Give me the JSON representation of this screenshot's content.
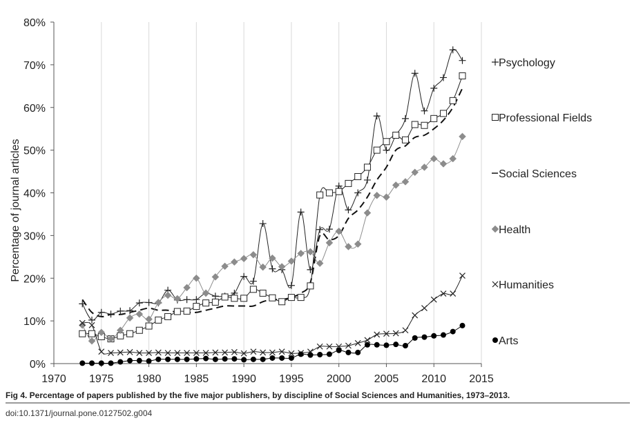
{
  "caption": "Fig 4. Percentage of papers published by the five major publishers, by discipline of Social Sciences and Humanities, 1973–2013.",
  "doi": "doi:10.1371/journal.pone.0127502.g004",
  "chart_data": {
    "type": "line",
    "title": "",
    "xlabel": "",
    "ylabel": "Percentage of journal articles",
    "xlim": [
      1970,
      2015
    ],
    "ylim": [
      0,
      80
    ],
    "x_ticks": [
      "1970",
      "1975",
      "1980",
      "1985",
      "1990",
      "1995",
      "2000",
      "2005",
      "2010",
      "2015"
    ],
    "y_ticks": [
      "0%",
      "10%",
      "20%",
      "30%",
      "40%",
      "50%",
      "60%",
      "70%",
      "80%"
    ],
    "grid": "vertical",
    "legend_position": "right",
    "x": [
      1973,
      1974,
      1975,
      1976,
      1977,
      1978,
      1979,
      1980,
      1981,
      1982,
      1983,
      1984,
      1985,
      1986,
      1987,
      1988,
      1989,
      1990,
      1991,
      1992,
      1993,
      1994,
      1995,
      1996,
      1997,
      1998,
      1999,
      2000,
      2001,
      2002,
      2003,
      2004,
      2005,
      2006,
      2007,
      2008,
      2009,
      2010,
      2011,
      2012,
      2013
    ],
    "series": [
      {
        "name": "Psychology",
        "marker": "plus",
        "color": "#222222",
        "width": 1,
        "dash": "",
        "values": [
          14.0,
          10.2,
          12.0,
          11.6,
          12.3,
          12.4,
          14.2,
          14.3,
          14.2,
          17.2,
          14.9,
          15.0,
          15.0,
          16.5,
          15.8,
          15.8,
          16.5,
          20.4,
          19.3,
          32.8,
          22.2,
          22.0,
          18.3,
          35.5,
          22.0,
          31.4,
          31.5,
          41.6,
          36.0,
          40.0,
          43.0,
          58.0,
          50.0,
          53.5,
          57.4,
          68.0,
          59.2,
          64.5,
          67.0,
          73.5,
          71.0
        ]
      },
      {
        "name": "Professional Fields",
        "marker": "square",
        "color": "#222222",
        "width": 1,
        "dash": "",
        "values": [
          7.0,
          7.0,
          6.3,
          5.8,
          6.5,
          7.0,
          7.8,
          8.8,
          10.2,
          11.0,
          12.2,
          12.3,
          13.4,
          14.2,
          14.4,
          15.6,
          15.3,
          15.3,
          17.4,
          16.5,
          15.4,
          14.5,
          15.5,
          15.5,
          18.2,
          39.5,
          40.0,
          40.3,
          42.2,
          43.8,
          46.0,
          50.0,
          52.0,
          53.5,
          52.4,
          56.0,
          55.8,
          57.4,
          58.6,
          61.6,
          67.4
        ]
      },
      {
        "name": "Social Sciences",
        "marker": "none",
        "color": "#111111",
        "width": 2,
        "dash": "10,6",
        "values": [
          15.0,
          12.0,
          11.0,
          11.5,
          11.5,
          12.0,
          12.5,
          13.0,
          12.5,
          12.5,
          12.0,
          12.0,
          12.0,
          12.5,
          13.0,
          13.5,
          13.5,
          13.5,
          13.5,
          14.5,
          15.0,
          15.0,
          15.5,
          16.5,
          19.0,
          30.0,
          29.0,
          30.0,
          34.0,
          36.0,
          39.0,
          43.0,
          46.0,
          50.0,
          51.0,
          53.0,
          53.5,
          55.0,
          57.0,
          60.0,
          64.5
        ]
      },
      {
        "name": "Health",
        "marker": "diamond",
        "color": "#8c8c8c",
        "width": 1,
        "dash": "",
        "values": [
          9.0,
          5.3,
          7.3,
          5.8,
          7.8,
          10.7,
          11.6,
          10.4,
          14.3,
          16.0,
          15.2,
          17.8,
          20.0,
          16.5,
          20.3,
          22.8,
          23.8,
          24.6,
          25.5,
          22.6,
          24.7,
          22.7,
          24.0,
          25.8,
          26.2,
          23.5,
          28.3,
          31.0,
          27.4,
          28.0,
          35.3,
          39.4,
          39.0,
          41.8,
          42.6,
          44.8,
          46.0,
          48.0,
          46.8,
          48.0,
          53.2
        ]
      },
      {
        "name": "Humanities",
        "marker": "x",
        "color": "#222222",
        "width": 1,
        "dash": "",
        "values": [
          9.5,
          9.0,
          2.8,
          2.5,
          2.6,
          2.7,
          2.5,
          2.5,
          2.6,
          2.5,
          2.5,
          2.5,
          2.5,
          2.5,
          2.6,
          2.6,
          2.7,
          2.4,
          2.8,
          2.6,
          2.6,
          2.8,
          2.4,
          2.5,
          2.8,
          4.0,
          4.0,
          4.0,
          4.2,
          4.8,
          5.5,
          6.8,
          7.0,
          7.1,
          7.8,
          11.3,
          13.0,
          15.0,
          16.4,
          16.4,
          20.6
        ]
      },
      {
        "name": "Arts",
        "marker": "circle",
        "color": "#000000",
        "width": 1,
        "dash": "",
        "values": [
          0.1,
          0.1,
          0.1,
          0.1,
          0.4,
          0.7,
          0.7,
          0.6,
          1.0,
          1.0,
          1.0,
          1.0,
          1.1,
          1.2,
          1.0,
          1.1,
          1.1,
          0.9,
          1.0,
          1.0,
          1.3,
          1.3,
          1.3,
          2.2,
          2.0,
          2.1,
          2.2,
          3.1,
          2.6,
          2.6,
          4.4,
          4.4,
          4.3,
          4.5,
          4.2,
          6.0,
          6.2,
          6.5,
          6.7,
          7.5,
          8.9
        ]
      }
    ]
  }
}
